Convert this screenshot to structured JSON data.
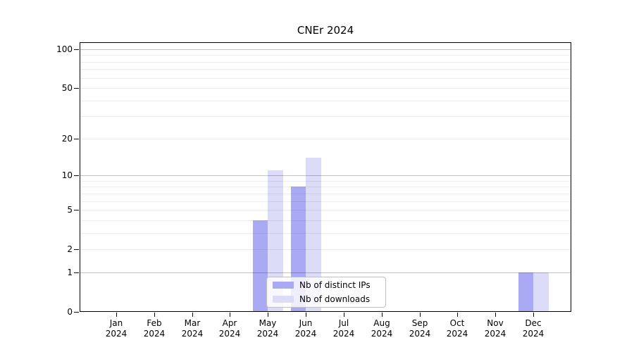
{
  "chart_data": {
    "type": "bar",
    "title": "CNEr 2024",
    "categories": [
      "Jan",
      "Feb",
      "Mar",
      "Apr",
      "May",
      "Jun",
      "Jul",
      "Aug",
      "Sep",
      "Oct",
      "Nov",
      "Dec"
    ],
    "x_tick_year": "2024",
    "series": [
      {
        "key": "distinct-ips",
        "name": "Nb of distinct IPs",
        "color": "#aaaaf4",
        "values": [
          0,
          0,
          0,
          0,
          4,
          8,
          0,
          0,
          0,
          0,
          0,
          1
        ]
      },
      {
        "key": "downloads",
        "name": "Nb of downloads",
        "color": "#dcdcf8",
        "values": [
          0,
          0,
          0,
          0,
          11,
          14,
          0,
          0,
          0,
          0,
          0,
          1
        ]
      }
    ],
    "y_axis": {
      "scale": "log10(1+x)",
      "tick_values": [
        100,
        50,
        20,
        10,
        5,
        2,
        1,
        0
      ],
      "minor_gridlines": [
        2,
        3,
        4,
        5,
        6,
        7,
        8,
        9,
        20,
        30,
        40,
        50,
        60,
        70,
        80,
        90
      ],
      "major_gridlines": [
        1,
        10,
        100
      ],
      "top_tick_value": 100,
      "bottom_value": 0
    },
    "legend": {
      "position": "bottom-center"
    },
    "grid": true
  }
}
